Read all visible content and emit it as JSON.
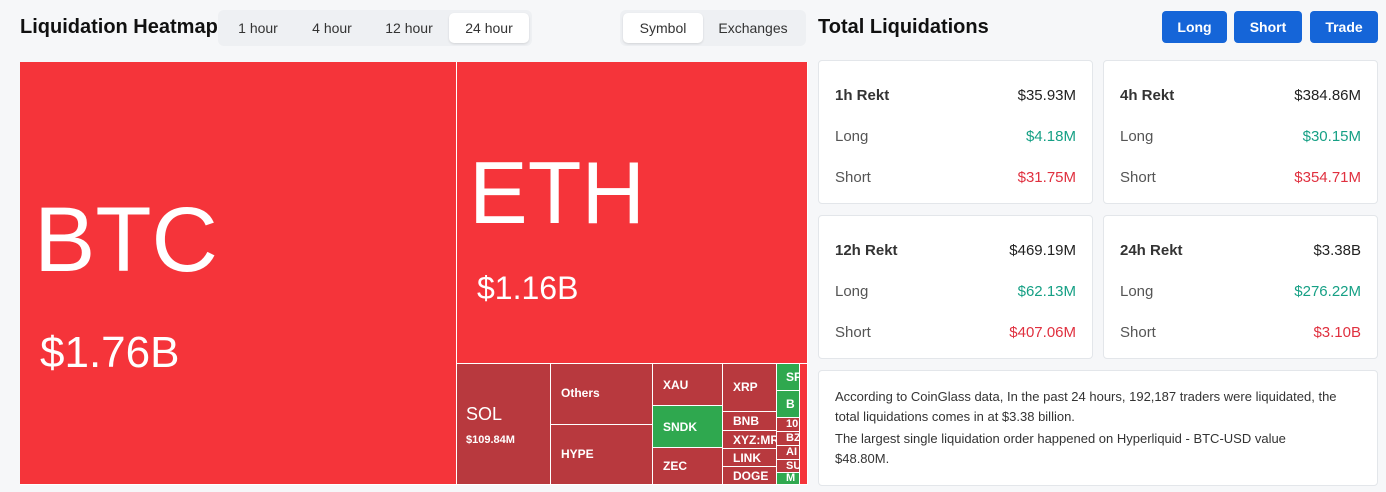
{
  "header": {
    "heatmap_title": "Liquidation Heatmap",
    "time_tabs": [
      {
        "label": "1 hour",
        "active": false
      },
      {
        "label": "4 hour",
        "active": false
      },
      {
        "label": "12 hour",
        "active": false
      },
      {
        "label": "24 hour",
        "active": true
      }
    ],
    "view_tabs": [
      {
        "label": "Symbol",
        "active": true
      },
      {
        "label": "Exchanges",
        "active": false
      }
    ],
    "totals_title": "Total Liquidations",
    "buttons": {
      "long": "Long",
      "short": "Short",
      "trade": "Trade"
    },
    "accent": "#1565d8"
  },
  "heatmap": {
    "colors": {
      "red": "#f5343a",
      "dark_red": "#b8393e",
      "green": "#2fa84f"
    },
    "tiles": {
      "btc": {
        "symbol": "BTC",
        "value": "$1.76B"
      },
      "eth": {
        "symbol": "ETH",
        "value": "$1.16B"
      },
      "sol": {
        "symbol": "SOL",
        "value": "$109.84M"
      },
      "others": {
        "symbol": "Others"
      },
      "hype": {
        "symbol": "HYPE"
      },
      "xau": {
        "symbol": "XAU"
      },
      "sndk": {
        "symbol": "SNDK"
      },
      "zec": {
        "symbol": "ZEC"
      },
      "xrp": {
        "symbol": "XRP"
      },
      "bnb": {
        "symbol": "BNB"
      },
      "xyzmr": {
        "symbol": "XYZ:MR"
      },
      "link": {
        "symbol": "LINK"
      },
      "doge": {
        "symbol": "DOGE"
      },
      "sp": {
        "symbol": "SP"
      },
      "b": {
        "symbol": "B"
      },
      "t10": {
        "symbol": "10"
      },
      "bz": {
        "symbol": "BZ"
      },
      "ai": {
        "symbol": "AI"
      },
      "su": {
        "symbol": "SU"
      },
      "m": {
        "symbol": "M"
      }
    }
  },
  "totals": {
    "h1": {
      "label": "1h Rekt",
      "total": "$35.93M",
      "long_label": "Long",
      "long": "$4.18M",
      "short_label": "Short",
      "short": "$31.75M"
    },
    "h4": {
      "label": "4h Rekt",
      "total": "$384.86M",
      "long_label": "Long",
      "long": "$30.15M",
      "short_label": "Short",
      "short": "$354.71M"
    },
    "h12": {
      "label": "12h Rekt",
      "total": "$469.19M",
      "long_label": "Long",
      "long": "$62.13M",
      "short_label": "Short",
      "short": "$407.06M"
    },
    "h24": {
      "label": "24h Rekt",
      "total": "$3.38B",
      "long_label": "Long",
      "long": "$276.22M",
      "short_label": "Short",
      "short": "$3.10B"
    }
  },
  "summary": {
    "line1": "According to CoinGlass data, In the past 24 hours, 192,187 traders were liquidated, the",
    "line2": "total liquidations comes in at $3.38 billion.",
    "line3": "The largest single liquidation order happened on Hyperliquid - BTC-USD value",
    "line4": "$48.80M."
  }
}
